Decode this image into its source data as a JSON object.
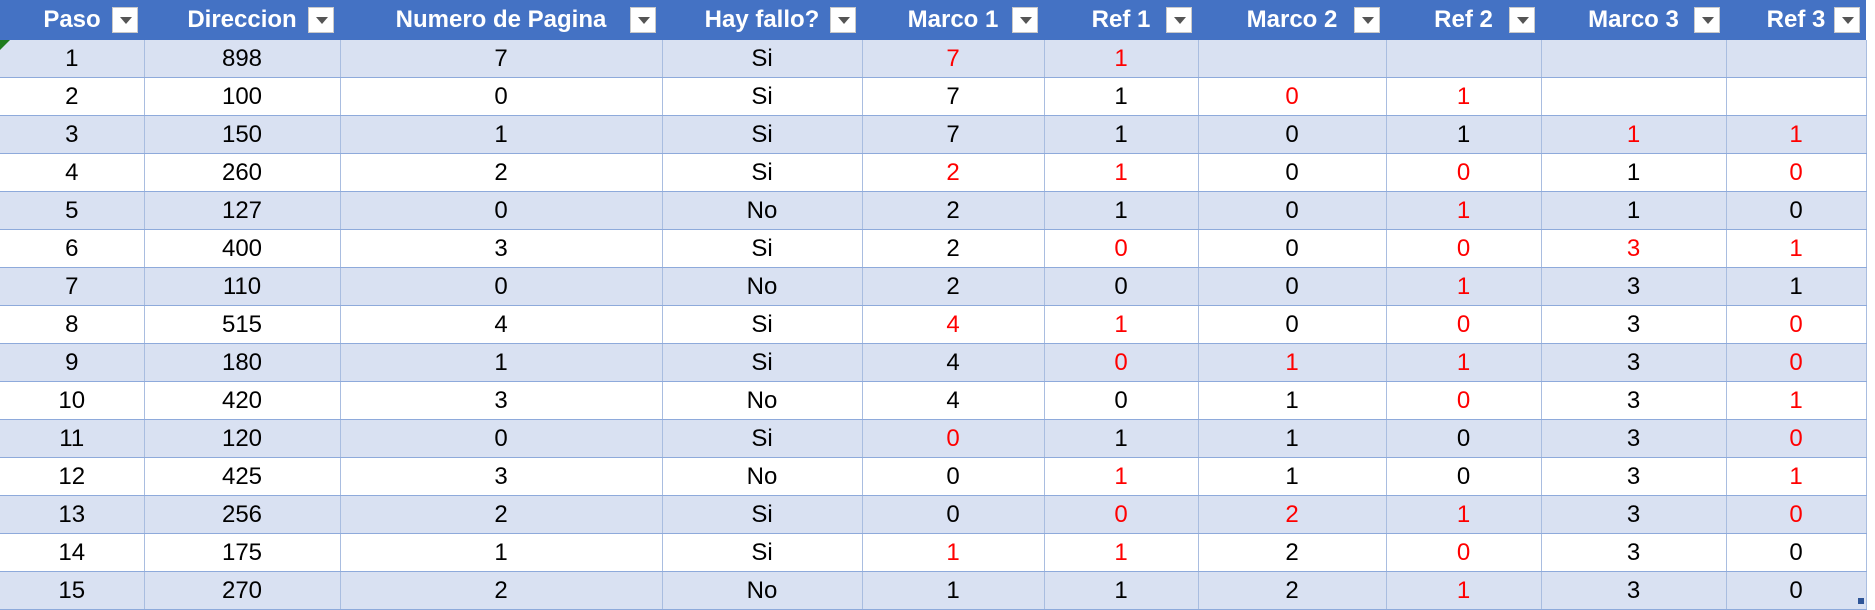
{
  "colors": {
    "header_bg": "#4472C4",
    "band_bg": "#D9E1F2",
    "highlight_text": "#FF0000"
  },
  "headers": [
    "Paso",
    "Direccion",
    "Numero de Pagina",
    "Hay fallo?",
    "Marco 1",
    "Ref 1",
    "Marco 2",
    "Ref 2",
    "Marco 3",
    "Ref 3"
  ],
  "rows": [
    [
      {
        "v": "1"
      },
      {
        "v": "898"
      },
      {
        "v": "7"
      },
      {
        "v": "Si"
      },
      {
        "v": "7",
        "red": true
      },
      {
        "v": "1",
        "red": true
      },
      {
        "v": ""
      },
      {
        "v": ""
      },
      {
        "v": ""
      },
      {
        "v": ""
      }
    ],
    [
      {
        "v": "2"
      },
      {
        "v": "100"
      },
      {
        "v": "0"
      },
      {
        "v": "Si"
      },
      {
        "v": "7"
      },
      {
        "v": "1"
      },
      {
        "v": "0",
        "red": true
      },
      {
        "v": "1",
        "red": true
      },
      {
        "v": ""
      },
      {
        "v": ""
      }
    ],
    [
      {
        "v": "3"
      },
      {
        "v": "150"
      },
      {
        "v": "1"
      },
      {
        "v": "Si"
      },
      {
        "v": "7"
      },
      {
        "v": "1"
      },
      {
        "v": "0"
      },
      {
        "v": "1"
      },
      {
        "v": "1",
        "red": true
      },
      {
        "v": "1",
        "red": true
      }
    ],
    [
      {
        "v": "4"
      },
      {
        "v": "260"
      },
      {
        "v": "2"
      },
      {
        "v": "Si"
      },
      {
        "v": "2",
        "red": true
      },
      {
        "v": "1",
        "red": true
      },
      {
        "v": "0"
      },
      {
        "v": "0",
        "red": true
      },
      {
        "v": "1"
      },
      {
        "v": "0",
        "red": true
      }
    ],
    [
      {
        "v": "5"
      },
      {
        "v": "127"
      },
      {
        "v": "0"
      },
      {
        "v": "No"
      },
      {
        "v": "2"
      },
      {
        "v": "1"
      },
      {
        "v": "0"
      },
      {
        "v": "1",
        "red": true
      },
      {
        "v": "1"
      },
      {
        "v": "0"
      }
    ],
    [
      {
        "v": "6"
      },
      {
        "v": "400"
      },
      {
        "v": "3"
      },
      {
        "v": "Si"
      },
      {
        "v": "2"
      },
      {
        "v": "0",
        "red": true
      },
      {
        "v": "0"
      },
      {
        "v": "0",
        "red": true
      },
      {
        "v": "3",
        "red": true
      },
      {
        "v": "1",
        "red": true
      }
    ],
    [
      {
        "v": "7"
      },
      {
        "v": "110"
      },
      {
        "v": "0"
      },
      {
        "v": "No"
      },
      {
        "v": "2"
      },
      {
        "v": "0"
      },
      {
        "v": "0"
      },
      {
        "v": "1",
        "red": true
      },
      {
        "v": "3"
      },
      {
        "v": "1"
      }
    ],
    [
      {
        "v": "8"
      },
      {
        "v": "515"
      },
      {
        "v": "4"
      },
      {
        "v": "Si"
      },
      {
        "v": "4",
        "red": true
      },
      {
        "v": "1",
        "red": true
      },
      {
        "v": "0"
      },
      {
        "v": "0",
        "red": true
      },
      {
        "v": "3"
      },
      {
        "v": "0",
        "red": true
      }
    ],
    [
      {
        "v": "9"
      },
      {
        "v": "180"
      },
      {
        "v": "1"
      },
      {
        "v": "Si"
      },
      {
        "v": "4"
      },
      {
        "v": "0",
        "red": true
      },
      {
        "v": "1",
        "red": true
      },
      {
        "v": "1",
        "red": true
      },
      {
        "v": "3"
      },
      {
        "v": "0",
        "red": true
      }
    ],
    [
      {
        "v": "10"
      },
      {
        "v": "420"
      },
      {
        "v": "3"
      },
      {
        "v": "No"
      },
      {
        "v": "4"
      },
      {
        "v": "0"
      },
      {
        "v": "1"
      },
      {
        "v": "0",
        "red": true
      },
      {
        "v": "3"
      },
      {
        "v": "1",
        "red": true
      }
    ],
    [
      {
        "v": "11"
      },
      {
        "v": "120"
      },
      {
        "v": "0"
      },
      {
        "v": "Si"
      },
      {
        "v": "0",
        "red": true
      },
      {
        "v": "1"
      },
      {
        "v": "1"
      },
      {
        "v": "0"
      },
      {
        "v": "3"
      },
      {
        "v": "0",
        "red": true
      }
    ],
    [
      {
        "v": "12"
      },
      {
        "v": "425"
      },
      {
        "v": "3"
      },
      {
        "v": "No"
      },
      {
        "v": "0"
      },
      {
        "v": "1",
        "red": true
      },
      {
        "v": "1"
      },
      {
        "v": "0"
      },
      {
        "v": "3"
      },
      {
        "v": "1",
        "red": true
      }
    ],
    [
      {
        "v": "13"
      },
      {
        "v": "256"
      },
      {
        "v": "2"
      },
      {
        "v": "Si"
      },
      {
        "v": "0"
      },
      {
        "v": "0",
        "red": true
      },
      {
        "v": "2",
        "red": true
      },
      {
        "v": "1",
        "red": true
      },
      {
        "v": "3"
      },
      {
        "v": "0",
        "red": true
      }
    ],
    [
      {
        "v": "14"
      },
      {
        "v": "175"
      },
      {
        "v": "1"
      },
      {
        "v": "Si"
      },
      {
        "v": "1",
        "red": true
      },
      {
        "v": "1",
        "red": true
      },
      {
        "v": "2"
      },
      {
        "v": "0",
        "red": true
      },
      {
        "v": "3"
      },
      {
        "v": "0"
      }
    ],
    [
      {
        "v": "15"
      },
      {
        "v": "270"
      },
      {
        "v": "2"
      },
      {
        "v": "No"
      },
      {
        "v": "1"
      },
      {
        "v": "1"
      },
      {
        "v": "2"
      },
      {
        "v": "1",
        "red": true
      },
      {
        "v": "3"
      },
      {
        "v": "0"
      }
    ]
  ]
}
